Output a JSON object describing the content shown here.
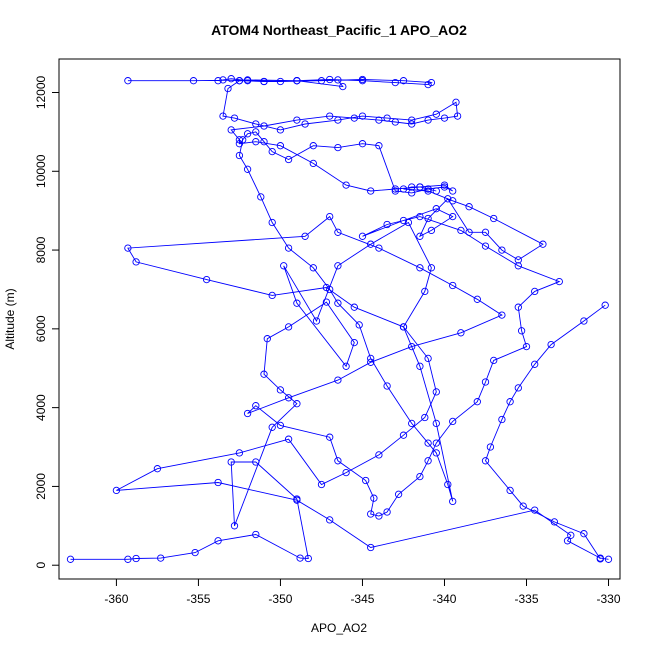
{
  "chart_data": {
    "type": "scatter",
    "title": "ATOM4 Northeast_Pacific_1 APO_AO2",
    "xlabel": "APO_AO2",
    "ylabel": "Altitude (m)",
    "xlim": [
      -363.5,
      -329.3
    ],
    "ylim": [
      -350,
      12850
    ],
    "xticks": [
      -360,
      -355,
      -350,
      -345,
      -340,
      -335,
      -330
    ],
    "yticks": [
      0,
      2000,
      4000,
      6000,
      8000,
      10000,
      12000
    ],
    "grid": false,
    "legend": "none",
    "color": "#0000ff",
    "marker": "open-circle",
    "connected": true,
    "series": [
      {
        "x": [
          -362.8,
          -359.3,
          -358.8,
          -357.3,
          -355.2,
          -353.8,
          -351.5,
          -348.8,
          -348.3,
          -349.0,
          -351.5,
          -353.0,
          -352.8,
          -350.5,
          -349.0,
          -350.0,
          -351.0,
          -350.8,
          -349.5,
          -347.2,
          -345.5,
          -346.0,
          -349.0,
          -349.8,
          -347.8,
          -346.5,
          -344.5,
          -342.2,
          -340.8,
          -341.2,
          -342.5,
          -341.5,
          -340.5,
          -339.5,
          -339.8,
          -340.5,
          -341.0,
          -342.0,
          -343.5,
          -344.5,
          -345.2,
          -346.5,
          -347.0,
          -348.0,
          -349.5,
          -350.5,
          -351.2,
          -352.0,
          -352.5,
          -352.3,
          -352.0,
          -351.5,
          -351.0,
          -350.5,
          -349.5,
          -348.0,
          -346.5,
          -345.0,
          -344.0,
          -343.0,
          -342.0,
          -341.0,
          -340.0,
          -339.5,
          -340.0,
          -341.5,
          -343.0,
          -344.5,
          -346.0,
          -348.0,
          -350.0,
          -351.5,
          -352.5,
          -352.5,
          -353.0,
          -351.0,
          -349.0,
          -347.0,
          -345.5,
          -344.0,
          -343.0,
          -342.0,
          -341.0,
          -340.0,
          -339.2,
          -339.3,
          -340.5,
          -342.0,
          -343.5,
          -345.0,
          -346.5,
          -348.5,
          -350.0,
          -351.5,
          -352.8,
          -353.5,
          -353.2,
          -352.5,
          -351.0,
          -349.0,
          -347.0,
          -345.0,
          -343.0,
          -341.0,
          -340.8,
          -342.5,
          -345.0,
          -347.5,
          -350.0,
          -352.5,
          -353.5,
          -353.8,
          -353.0,
          -352.0,
          -351.0,
          -349.0,
          -346.5,
          -346.2,
          -349.0,
          -352.0,
          -355.3,
          -359.3
        ],
        "y": [
          150,
          150,
          170,
          180,
          320,
          620,
          780,
          180,
          170,
          1680,
          2620,
          2620,
          1000,
          3500,
          4100,
          4450,
          4850,
          5750,
          6050,
          6680,
          5650,
          5050,
          6650,
          7600,
          6200,
          7600,
          8150,
          8700,
          7550,
          6950,
          6050,
          5050,
          3600,
          1620,
          2050,
          2850,
          3100,
          3600,
          4550,
          5250,
          6100,
          6650,
          7000,
          7550,
          8050,
          8700,
          9350,
          10050,
          10400,
          10800,
          10950,
          11000,
          10750,
          10500,
          10300,
          10650,
          10600,
          10700,
          10650,
          9500,
          9450,
          9550,
          9600,
          9500,
          9650,
          9600,
          9550,
          9500,
          9650,
          10200,
          10650,
          10750,
          10700,
          10800,
          11050,
          11150,
          11300,
          11400,
          11350,
          11300,
          11250,
          11200,
          11300,
          11350,
          11400,
          11750,
          11450,
          11300,
          11350,
          11400,
          11300,
          11200,
          11050,
          11200,
          11350,
          11400,
          12100,
          12300,
          12280,
          12300,
          12330,
          12300,
          12250,
          12200,
          12250,
          12300,
          12330,
          12300,
          12280,
          12300,
          12320,
          12300,
          12350,
          12300,
          12280,
          12300,
          12320,
          12150,
          12300,
          12320,
          12300,
          12300
        ]
      },
      {
        "x": [
          -330.0,
          -330.5,
          -332.5,
          -332.3,
          -334.5,
          -344.5,
          -347.0,
          -349.0,
          -353.8,
          -360.0,
          -357.5,
          -352.5,
          -349.5,
          -347.5,
          -346.0,
          -344.0,
          -342.5,
          -341.2,
          -340.5,
          -341.0,
          -342.5,
          -345.5,
          -347.2,
          -350.5,
          -354.5,
          -358.8,
          -359.3,
          -348.5,
          -347.0,
          -346.5,
          -344.0,
          -341.5,
          -339.5,
          -338.0,
          -336.5,
          -339.0,
          -342.0,
          -344.5,
          -346.5,
          -349.5,
          -352.0,
          -351.5,
          -350.0,
          -347.0,
          -346.5,
          -344.8,
          -344.3,
          -344.5,
          -344.0,
          -343.5,
          -342.8,
          -341.5,
          -341.0,
          -340.5,
          -339.5,
          -338.0,
          -337.5,
          -337.0,
          -335.0,
          -335.3,
          -335.5,
          -334.5,
          -333.0,
          -335.5,
          -337.5,
          -339.0,
          -341.5,
          -343.5,
          -345.0,
          -342.5,
          -340.5,
          -339.5,
          -340.8,
          -341.5,
          -341.0,
          -339.8,
          -338.5,
          -337.5,
          -336.5,
          -335.5,
          -334.0,
          -337.0,
          -338.5,
          -339.5,
          -341.0,
          -342.5,
          -342.0,
          -341.5,
          -341.0,
          -340.5
        ],
        "y": [
          150,
          180,
          620,
          760,
          1400,
          450,
          1150,
          1650,
          2100,
          1900,
          2450,
          2850,
          3200,
          2050,
          2350,
          2800,
          3300,
          3750,
          4400,
          5250,
          6050,
          6550,
          7050,
          6850,
          7250,
          7700,
          8050,
          8350,
          8850,
          8450,
          8050,
          7550,
          7100,
          6750,
          6350,
          5900,
          5550,
          5150,
          4700,
          4250,
          3850,
          4050,
          3550,
          3250,
          2650,
          2150,
          1700,
          1300,
          1250,
          1350,
          1800,
          2250,
          2650,
          3100,
          3650,
          4150,
          4650,
          5200,
          5550,
          5950,
          6550,
          6950,
          7200,
          7600,
          8100,
          8500,
          8850,
          8650,
          8350,
          8750,
          9050,
          8850,
          8500,
          8350,
          8800,
          9300,
          8450,
          8450,
          8000,
          7750,
          8150,
          8800,
          9100,
          9250,
          9500,
          9550,
          9600,
          9600,
          9550,
          9500
        ]
      },
      {
        "x": [
          -330.5,
          -331.5,
          -333.3,
          -335.2,
          -336.0,
          -337.5,
          -337.2,
          -336.5,
          -336.0,
          -335.5,
          -334.5,
          -333.5,
          -331.5,
          -330.2
        ],
        "y": [
          160,
          800,
          1100,
          1500,
          1900,
          2650,
          3000,
          3700,
          4150,
          4500,
          5100,
          5600,
          6200,
          6600
        ]
      }
    ]
  }
}
